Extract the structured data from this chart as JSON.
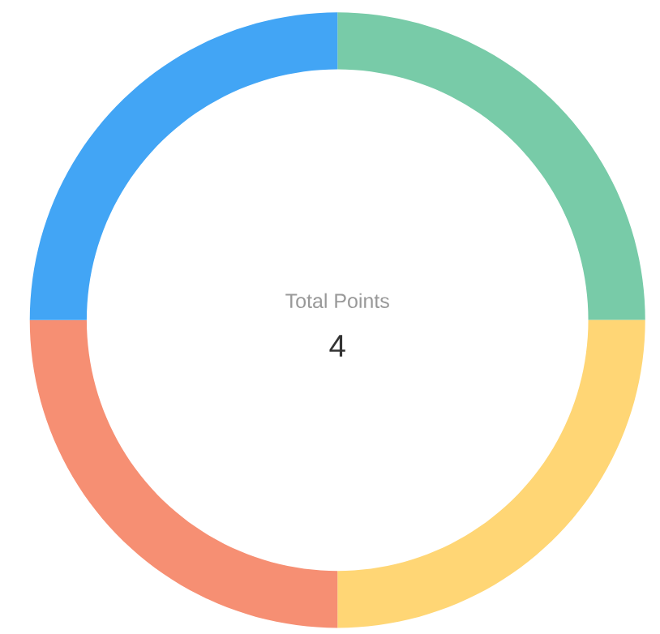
{
  "chart_data": {
    "type": "donut",
    "categories": [
      null,
      null,
      null,
      null
    ],
    "values": [
      25,
      25,
      25,
      25
    ],
    "colors": [
      "#78cba8",
      "#ffd675",
      "#f68f73",
      "#42a5f5"
    ],
    "annotations": [
      "Total Points",
      "4"
    ]
  }
}
